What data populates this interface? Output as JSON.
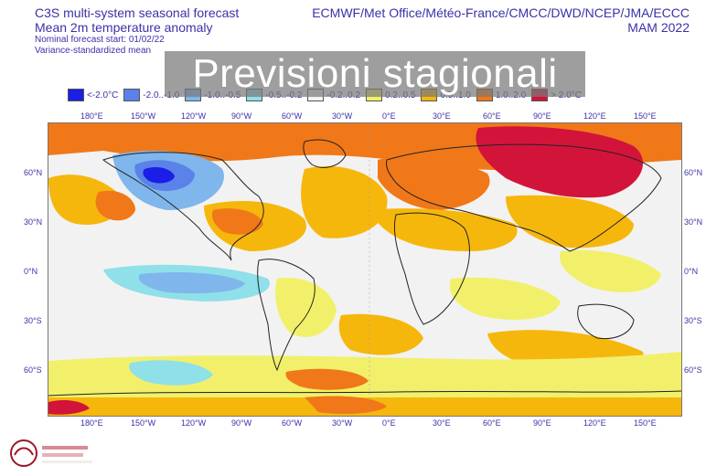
{
  "header": {
    "line1": "C3S multi-system seasonal forecast",
    "line2": "Mean 2m temperature anomaly",
    "line3": "Nominal forecast start: 01/02/22",
    "line4": "Variance-standardized mean",
    "centres": "ECMWF/Met Office/Météo-France/CMCC/DWD/NCEP/JMA/ECCC",
    "season": "MAM 2022"
  },
  "overlay_title": "Previsioni stagionali",
  "legend": {
    "items": [
      {
        "label": "<-2.0°C",
        "color": "#1a1ee6"
      },
      {
        "label": "-2.0..-1.0",
        "color": "#5a82e8"
      },
      {
        "label": "-1.0..-0.5",
        "color": "#7fb6ec"
      },
      {
        "label": "-0.5..-0.2",
        "color": "#8fe0e8"
      },
      {
        "label": "-0.2..0.2",
        "color": "#f2f2f2"
      },
      {
        "label": "0.2..0.5",
        "color": "#f2f06a"
      },
      {
        "label": "0.5..1.0",
        "color": "#f6b70c"
      },
      {
        "label": "1.0..2.0",
        "color": "#f07818"
      },
      {
        "label": "> 2.0°C",
        "color": "#d3143a"
      }
    ]
  },
  "axes": {
    "lon_labels": [
      "180°E",
      "150°W",
      "120°W",
      "90°W",
      "60°W",
      "30°W",
      "0°E",
      "30°E",
      "60°E",
      "90°E",
      "120°E",
      "150°E"
    ],
    "lat_labels": [
      "60°N",
      "30°N",
      "0°N",
      "30°S",
      "60°S"
    ]
  },
  "colors": {
    "cold_extreme": "#1a1ee6",
    "cold": "#5a82e8",
    "cool": "#7fb6ec",
    "slightly_cool": "#8fe0e8",
    "neutral": "#f2f2f2",
    "slightly_warm": "#f2f06a",
    "warm": "#f6b70c",
    "hot": "#f07818",
    "hot_extreme": "#d3143a"
  },
  "logo": {
    "icon": "climate-logo-icon"
  }
}
